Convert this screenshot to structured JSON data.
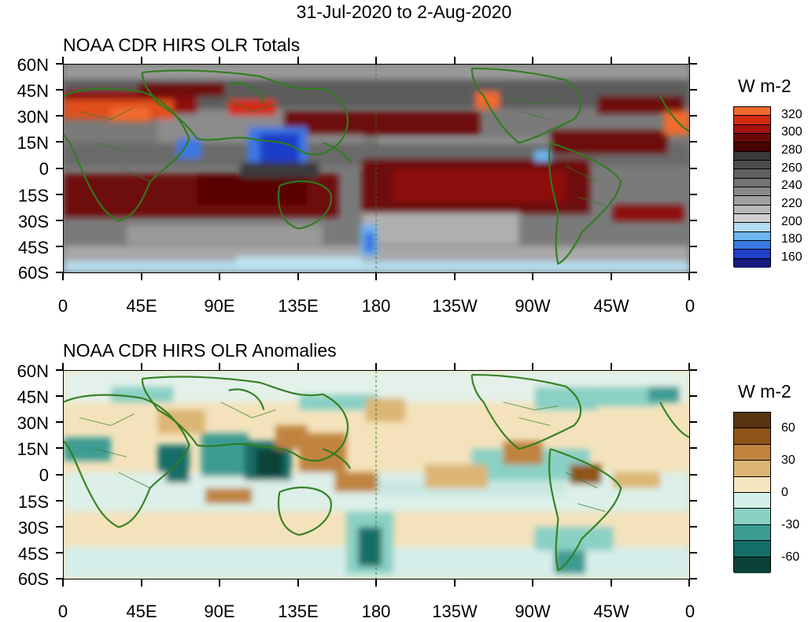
{
  "title": "31-Jul-2020 to 2-Aug-2020",
  "lat_ticks": [
    "60N",
    "45N",
    "30N",
    "15N",
    "0",
    "15S",
    "30S",
    "45S",
    "60S"
  ],
  "lon_ticks": [
    "0",
    "45E",
    "90E",
    "135E",
    "180",
    "135W",
    "90W",
    "45W",
    "0"
  ],
  "panels": [
    {
      "title": "NOAA CDR HIRS OLR Totals",
      "colorbar": {
        "units": "W m-2",
        "labels": [
          "320",
          "300",
          "280",
          "260",
          "240",
          "220",
          "200",
          "180",
          "160"
        ],
        "colors": [
          "#f26b2d",
          "#d42a12",
          "#a3130d",
          "#6e0808",
          "#4a0202",
          "#3a3a3a",
          "#4c4c4c",
          "#606060",
          "#747474",
          "#8a8a8a",
          "#a0a0a0",
          "#b8b8b8",
          "#d0d0d0",
          "#b4dcf0",
          "#6eb4ee",
          "#3a78e4",
          "#1e3ec8",
          "#171a7c"
        ]
      }
    },
    {
      "title": "NOAA CDR HIRS OLR Anomalies",
      "colorbar": {
        "units": "W m-2",
        "labels": [
          "60",
          "30",
          "0",
          "-30",
          "-60"
        ],
        "colors": [
          "#5a3410",
          "#8e5418",
          "#c08440",
          "#dcb574",
          "#f6e6c2",
          "#d6eeea",
          "#8ad0c4",
          "#3c9c92",
          "#136e68",
          "#0a4238"
        ]
      }
    }
  ]
}
